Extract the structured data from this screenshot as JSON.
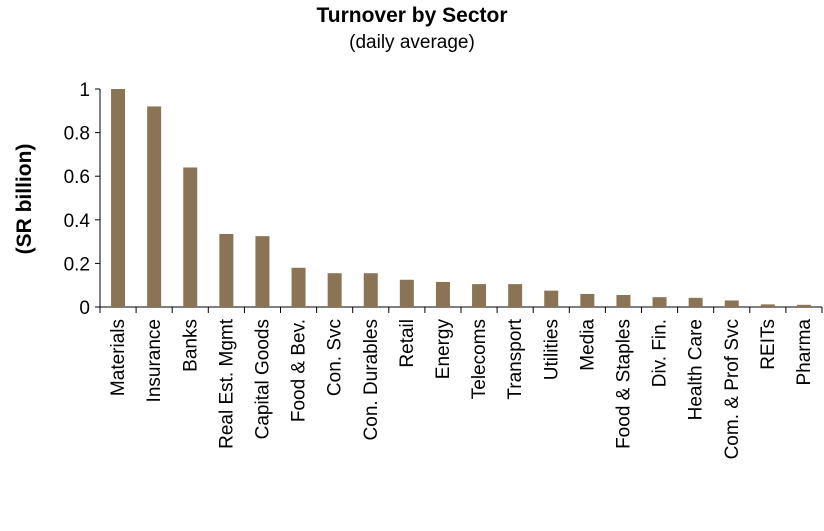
{
  "chart_data": {
    "type": "bar",
    "title": "Turnover by Sector",
    "subtitle": "(daily average)",
    "ylabel": "(SR  billion)",
    "xlabel": "",
    "ylim": [
      0,
      1
    ],
    "yticks": [
      "0",
      "0.2",
      "0.4",
      "0.6",
      "0.8",
      "1"
    ],
    "grid": false,
    "legend": "none",
    "bar_color": "#8B7355",
    "categories": [
      "Materials",
      "Insurance",
      "Banks",
      "Real Est. Mgmt",
      "Capital Goods",
      "Food & Bev.",
      "Con. Svc",
      "Con. Durables",
      "Retail",
      "Energy",
      "Telecoms",
      "Transport",
      "Utilities",
      "Media",
      "Food & Staples",
      "Div. Fin.",
      "Health Care",
      "Com. & Prof Svc",
      "REITs",
      "Pharma"
    ],
    "values": [
      1.0,
      0.92,
      0.64,
      0.335,
      0.325,
      0.18,
      0.155,
      0.155,
      0.125,
      0.115,
      0.105,
      0.105,
      0.075,
      0.06,
      0.055,
      0.045,
      0.042,
      0.03,
      0.012,
      0.01
    ]
  }
}
